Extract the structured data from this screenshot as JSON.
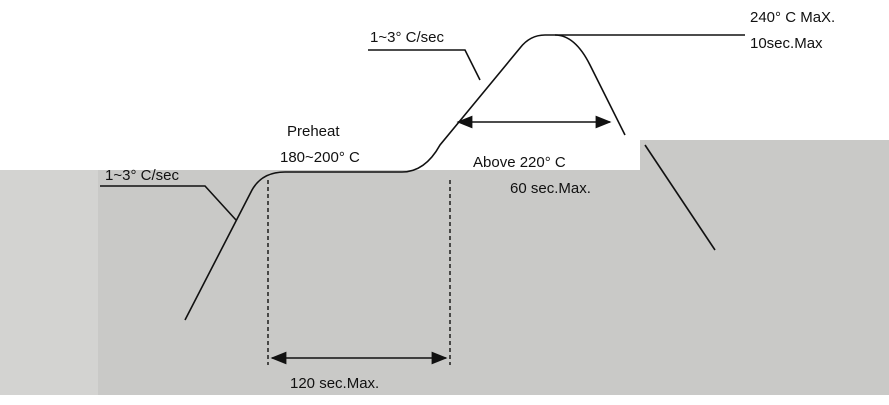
{
  "peak": {
    "temp": "240° C MaX.",
    "time": "10sec.Max"
  },
  "ramp_up": "1~3° C/sec",
  "preheat": {
    "title": "Preheat",
    "temp": "180~200° C"
  },
  "above": {
    "temp": "Above 220° C",
    "time": "60 sec.Max."
  },
  "ramp_initial": "1~3° C/sec",
  "preheat_time": "120 sec.Max."
}
